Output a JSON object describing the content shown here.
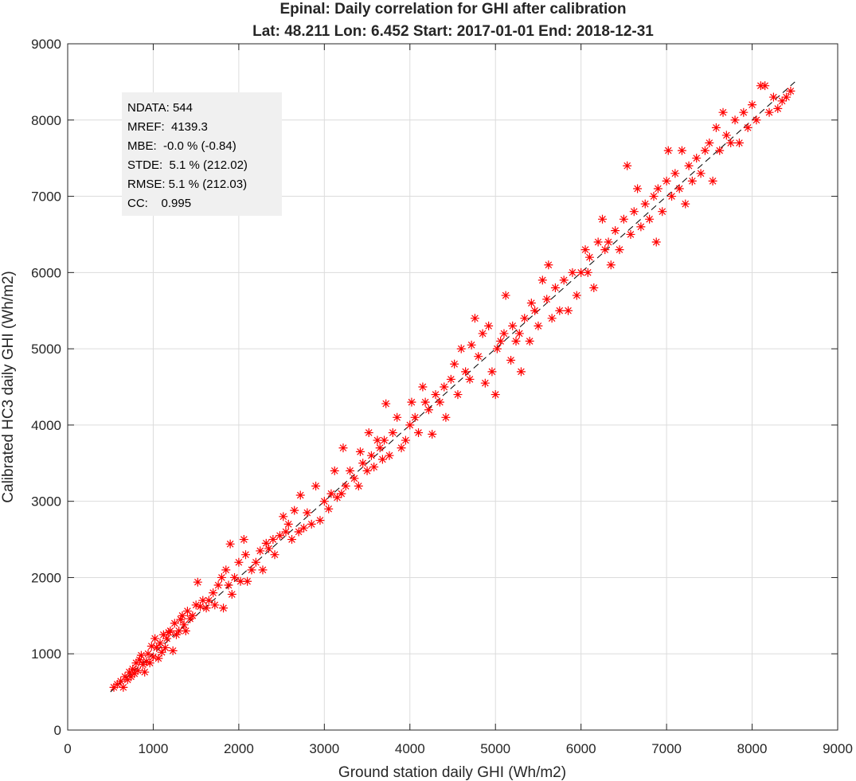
{
  "chart_data": {
    "type": "scatter",
    "title": "Epinal: Daily correlation for GHI after calibration",
    "subtitle": "Lat: 48.211 Lon: 6.452 Start: 2017-01-01 End: 2018-12-31",
    "xlabel": "Ground station daily GHI (Wh/m2)",
    "ylabel": "Calibrated HC3 daily GHI (Wh/m2)",
    "xlim": [
      0,
      9000
    ],
    "ylim": [
      0,
      9000
    ],
    "xticks": [
      0,
      1000,
      2000,
      3000,
      4000,
      5000,
      6000,
      7000,
      8000,
      9000
    ],
    "yticks": [
      0,
      1000,
      2000,
      3000,
      4000,
      5000,
      6000,
      7000,
      8000,
      9000
    ],
    "grid": true,
    "marker": "asterisk",
    "marker_color": "#ff0000",
    "reference_line": {
      "style": "dashed",
      "color": "#000000",
      "x": [
        500,
        8500
      ],
      "y": [
        500,
        8500
      ]
    },
    "stats_box": {
      "position": "top-left",
      "lines": [
        "NDATA: 544",
        "MREF:  4139.3",
        "MBE:  -0.0 % (-0.84)",
        "STDE:  5.1 % (212.02)",
        "RMSE: 5.1 % (212.03)",
        "CC:    0.995"
      ]
    },
    "points": [
      [
        540,
        560
      ],
      [
        580,
        600
      ],
      [
        620,
        640
      ],
      [
        650,
        560
      ],
      [
        670,
        700
      ],
      [
        700,
        660
      ],
      [
        720,
        760
      ],
      [
        740,
        700
      ],
      [
        760,
        800
      ],
      [
        780,
        740
      ],
      [
        800,
        880
      ],
      [
        820,
        780
      ],
      [
        840,
        920
      ],
      [
        860,
        980
      ],
      [
        880,
        860
      ],
      [
        900,
        760
      ],
      [
        920,
        900
      ],
      [
        940,
        1000
      ],
      [
        960,
        880
      ],
      [
        980,
        1100
      ],
      [
        1000,
        960
      ],
      [
        1020,
        1200
      ],
      [
        1040,
        1080
      ],
      [
        1060,
        940
      ],
      [
        1080,
        1140
      ],
      [
        1100,
        1020
      ],
      [
        1120,
        1250
      ],
      [
        1140,
        1080
      ],
      [
        1160,
        1200
      ],
      [
        1180,
        1280
      ],
      [
        1200,
        1300
      ],
      [
        1230,
        1040
      ],
      [
        1250,
        1400
      ],
      [
        1270,
        1250
      ],
      [
        1300,
        1300
      ],
      [
        1320,
        1450
      ],
      [
        1340,
        1500
      ],
      [
        1360,
        1380
      ],
      [
        1380,
        1300
      ],
      [
        1400,
        1560
      ],
      [
        1430,
        1460
      ],
      [
        1460,
        1500
      ],
      [
        1500,
        1640
      ],
      [
        1520,
        1940
      ],
      [
        1550,
        1620
      ],
      [
        1580,
        1700
      ],
      [
        1620,
        1600
      ],
      [
        1650,
        1700
      ],
      [
        1700,
        1800
      ],
      [
        1720,
        1640
      ],
      [
        1760,
        1900
      ],
      [
        1800,
        2000
      ],
      [
        1820,
        1600
      ],
      [
        1850,
        2100
      ],
      [
        1880,
        1900
      ],
      [
        1900,
        2440
      ],
      [
        1920,
        1780
      ],
      [
        1950,
        2000
      ],
      [
        2000,
        2200
      ],
      [
        2020,
        1950
      ],
      [
        2060,
        2500
      ],
      [
        2080,
        2300
      ],
      [
        2100,
        1950
      ],
      [
        2150,
        2100
      ],
      [
        2200,
        2200
      ],
      [
        2250,
        2350
      ],
      [
        2280,
        2100
      ],
      [
        2320,
        2450
      ],
      [
        2350,
        2380
      ],
      [
        2400,
        2500
      ],
      [
        2420,
        2300
      ],
      [
        2480,
        2550
      ],
      [
        2520,
        2800
      ],
      [
        2550,
        2600
      ],
      [
        2580,
        2700
      ],
      [
        2620,
        2500
      ],
      [
        2650,
        2880
      ],
      [
        2700,
        2600
      ],
      [
        2720,
        3080
      ],
      [
        2760,
        2650
      ],
      [
        2800,
        2850
      ],
      [
        2850,
        2700
      ],
      [
        2900,
        3200
      ],
      [
        2950,
        2750
      ],
      [
        3000,
        3000
      ],
      [
        3050,
        2900
      ],
      [
        3080,
        3100
      ],
      [
        3120,
        3400
      ],
      [
        3150,
        3050
      ],
      [
        3200,
        3100
      ],
      [
        3220,
        3700
      ],
      [
        3250,
        3200
      ],
      [
        3300,
        3400
      ],
      [
        3350,
        3300
      ],
      [
        3400,
        3200
      ],
      [
        3420,
        3650
      ],
      [
        3450,
        3500
      ],
      [
        3500,
        3400
      ],
      [
        3520,
        3900
      ],
      [
        3550,
        3600
      ],
      [
        3580,
        3450
      ],
      [
        3620,
        3800
      ],
      [
        3650,
        3700
      ],
      [
        3680,
        3550
      ],
      [
        3700,
        3800
      ],
      [
        3720,
        4280
      ],
      [
        3760,
        3600
      ],
      [
        3800,
        3900
      ],
      [
        3850,
        4100
      ],
      [
        3900,
        3700
      ],
      [
        3950,
        3800
      ],
      [
        4000,
        4000
      ],
      [
        4020,
        4300
      ],
      [
        4060,
        4100
      ],
      [
        4100,
        3900
      ],
      [
        4150,
        4500
      ],
      [
        4180,
        4300
      ],
      [
        4220,
        4200
      ],
      [
        4260,
        3880
      ],
      [
        4300,
        4400
      ],
      [
        4350,
        4300
      ],
      [
        4400,
        4500
      ],
      [
        4420,
        4100
      ],
      [
        4480,
        4600
      ],
      [
        4520,
        4800
      ],
      [
        4560,
        4400
      ],
      [
        4600,
        5000
      ],
      [
        4650,
        4700
      ],
      [
        4700,
        4600
      ],
      [
        4720,
        5050
      ],
      [
        4760,
        5400
      ],
      [
        4800,
        4900
      ],
      [
        4850,
        5200
      ],
      [
        4880,
        4550
      ],
      [
        4920,
        5300
      ],
      [
        4960,
        4700
      ],
      [
        5000,
        4400
      ],
      [
        5020,
        5000
      ],
      [
        5060,
        5100
      ],
      [
        5100,
        5200
      ],
      [
        5120,
        5700
      ],
      [
        5180,
        4850
      ],
      [
        5200,
        5300
      ],
      [
        5240,
        5100
      ],
      [
        5280,
        5200
      ],
      [
        5300,
        4700
      ],
      [
        5340,
        5400
      ],
      [
        5400,
        5100
      ],
      [
        5420,
        5600
      ],
      [
        5460,
        5500
      ],
      [
        5500,
        5300
      ],
      [
        5550,
        5900
      ],
      [
        5600,
        5650
      ],
      [
        5620,
        6100
      ],
      [
        5660,
        5400
      ],
      [
        5700,
        5800
      ],
      [
        5750,
        5500
      ],
      [
        5800,
        5900
      ],
      [
        5850,
        5500
      ],
      [
        5900,
        6000
      ],
      [
        5950,
        5700
      ],
      [
        6000,
        6000
      ],
      [
        6050,
        6300
      ],
      [
        6080,
        6000
      ],
      [
        6100,
        6200
      ],
      [
        6150,
        5800
      ],
      [
        6200,
        6400
      ],
      [
        6250,
        6700
      ],
      [
        6280,
        6300
      ],
      [
        6320,
        6400
      ],
      [
        6350,
        6100
      ],
      [
        6400,
        6550
      ],
      [
        6450,
        6300
      ],
      [
        6500,
        6700
      ],
      [
        6540,
        7400
      ],
      [
        6580,
        6500
      ],
      [
        6620,
        6800
      ],
      [
        6660,
        7100
      ],
      [
        6700,
        6600
      ],
      [
        6750,
        6900
      ],
      [
        6800,
        6700
      ],
      [
        6850,
        7000
      ],
      [
        6880,
        6400
      ],
      [
        6900,
        7100
      ],
      [
        6950,
        6800
      ],
      [
        7000,
        7200
      ],
      [
        7020,
        7600
      ],
      [
        7060,
        7000
      ],
      [
        7100,
        7300
      ],
      [
        7150,
        7100
      ],
      [
        7180,
        7600
      ],
      [
        7220,
        6900
      ],
      [
        7260,
        7400
      ],
      [
        7300,
        7200
      ],
      [
        7350,
        7500
      ],
      [
        7400,
        7300
      ],
      [
        7450,
        7600
      ],
      [
        7500,
        7700
      ],
      [
        7540,
        7200
      ],
      [
        7580,
        7900
      ],
      [
        7620,
        7600
      ],
      [
        7660,
        8100
      ],
      [
        7700,
        7800
      ],
      [
        7750,
        7700
      ],
      [
        7800,
        8000
      ],
      [
        7850,
        7700
      ],
      [
        7900,
        8100
      ],
      [
        7950,
        7900
      ],
      [
        8000,
        8200
      ],
      [
        8050,
        8000
      ],
      [
        8100,
        8450
      ],
      [
        8150,
        8450
      ],
      [
        8200,
        8100
      ],
      [
        8250,
        8300
      ],
      [
        8300,
        8150
      ],
      [
        8350,
        8250
      ],
      [
        8400,
        8300
      ],
      [
        8450,
        8380
      ]
    ]
  }
}
